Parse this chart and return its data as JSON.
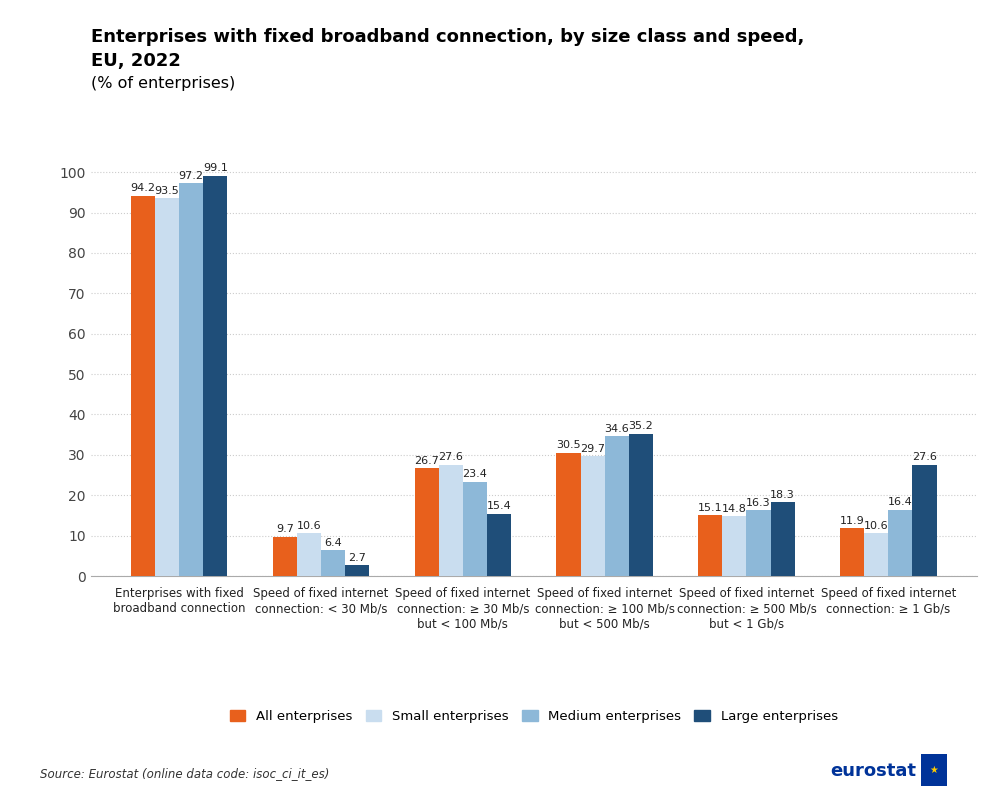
{
  "title_line1": "Enterprises with fixed broadband connection, by size class and speed,",
  "title_line2": "EU, 2022",
  "subtitle": "(% of enterprises)",
  "categories": [
    "Enterprises with fixed\nbroadband connection",
    "Speed of fixed internet\nconnection: < 30 Mb/s",
    "Speed of fixed internet\nconnection: ≥ 30 Mb/s\nbut < 100 Mb/s",
    "Speed of fixed internet\nconnection: ≥ 100 Mb/s\nbut < 500 Mb/s",
    "Speed of fixed internet\nconnection: ≥ 500 Mb/s\nbut < 1 Gb/s",
    "Speed of fixed internet\nconnection: ≥ 1 Gb/s"
  ],
  "series": {
    "All enterprises": [
      94.2,
      9.7,
      26.7,
      30.5,
      15.1,
      11.9
    ],
    "Small enterprises": [
      93.5,
      10.6,
      27.6,
      29.7,
      14.8,
      10.6
    ],
    "Medium enterprises": [
      97.2,
      6.4,
      23.4,
      34.6,
      16.3,
      16.4
    ],
    "Large enterprises": [
      99.1,
      2.7,
      15.4,
      35.2,
      18.3,
      27.6
    ]
  },
  "colors": {
    "All enterprises": "#E8601C",
    "Small enterprises": "#C9DDEF",
    "Medium enterprises": "#8DB8D8",
    "Large enterprises": "#1F4E79"
  },
  "legend_order": [
    "All enterprises",
    "Small enterprises",
    "Medium enterprises",
    "Large enterprises"
  ],
  "ylim": [
    0,
    105
  ],
  "yticks": [
    0,
    10,
    20,
    30,
    40,
    50,
    60,
    70,
    80,
    90,
    100
  ],
  "source": "Source: Eurostat (online data code: isoc_ci_it_es)",
  "bar_width": 0.17,
  "value_fontsize": 8.0,
  "xtick_fontsize": 8.5,
  "ytick_fontsize": 10
}
